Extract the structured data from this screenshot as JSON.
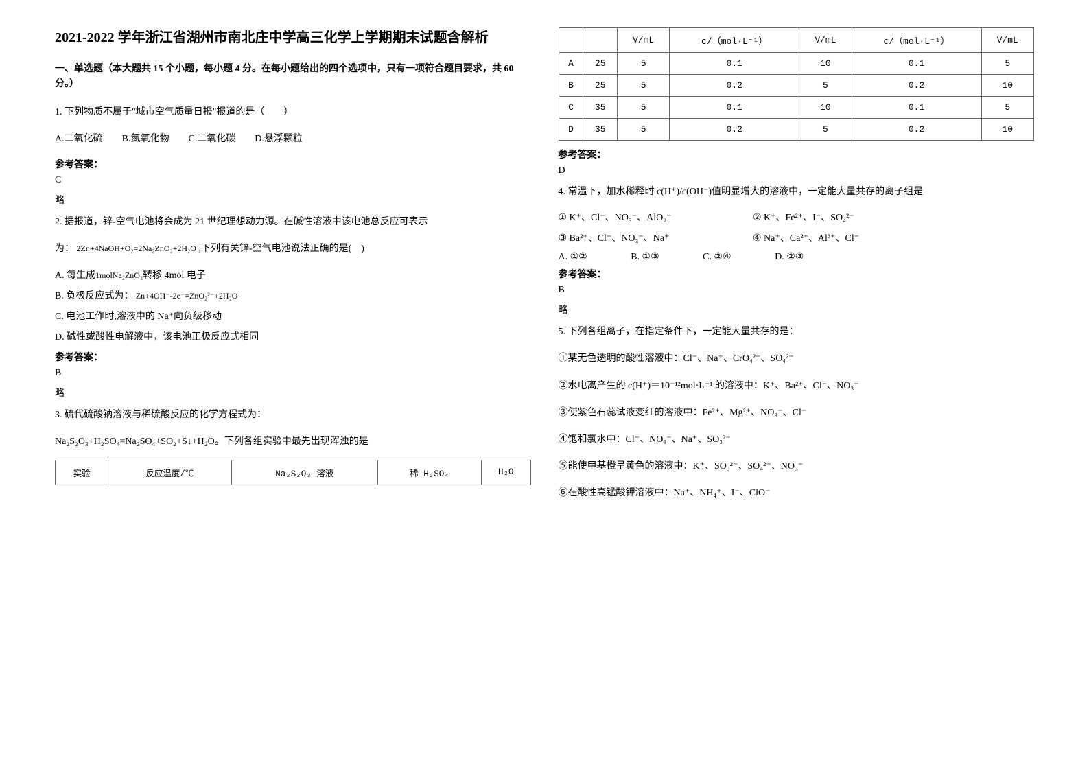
{
  "doc": {
    "title": "2021-2022 学年浙江省湖州市南北庄中学高三化学上学期期末试题含解析",
    "section1_intro": "一、单选题（本大题共 15 个小题，每小题 4 分。在每小题给出的四个选项中，只有一项符合题目要求，共 60 分。）",
    "q1": {
      "stem": "1. 下列物质不属于\"城市空气质量日报\"报道的是（　　）",
      "opts": "A.二氧化硫　　B.氮氧化物　　C.二氧化碳　　D.悬浮颗粒",
      "ans_label": "参考答案：",
      "ans": "C",
      "note": "略"
    },
    "q2": {
      "stem1": "2. 据报道，锌-空气电池将会成为 21 世纪理想动力源。在碱性溶液中该电池总反应可表示",
      "stem2_pre": "为：",
      "stem2_eq": "2Zn+4NaOH+O₂=2Na₂ZnO₂+2H₂O",
      "stem2_post": ",下列有关锌-空气电池说法正确的是(　)",
      "optA_pre": "A. 每生成",
      "optA_eq": "1molNa₂ZnO₂",
      "optA_post": "转移 4mol 电子",
      "optB_pre": "B. 负极反应式为：",
      "optB_eq": "Zn+4OH⁻-2e⁻=ZnO₂²⁻+2H₂O",
      "optC": "C. 电池工作时,溶液中的 Na⁺向负级移动",
      "optD": "D. 碱性或酸性电解液中，该电池正极反应式相同",
      "ans_label": "参考答案：",
      "ans": "B",
      "note": "略"
    },
    "q3": {
      "stem1": "3. 硫代硫酸钠溶液与稀硫酸反应的化学方程式为：",
      "stem2": "Na₂S₂O₃+H₂SO₄=Na₂SO₄+SO₂+S↓+H₂O。下列各组实验中最先出现浑浊的是",
      "table1": {
        "r": [
          "实验",
          "反应温度/℃",
          "Na₂S₂O₃ 溶液",
          "稀 H₂SO₄",
          "H₂O"
        ]
      },
      "table2": {
        "hdr": [
          "",
          "",
          "V/mL",
          "c/（mol·L⁻¹）",
          "V/mL",
          "c/（mol·L⁻¹）",
          "V/mL"
        ],
        "rows": [
          [
            "A",
            "25",
            "5",
            "0.1",
            "10",
            "0.1",
            "5"
          ],
          [
            "B",
            "25",
            "5",
            "0.2",
            "5",
            "0.2",
            "10"
          ],
          [
            "C",
            "35",
            "5",
            "0.1",
            "10",
            "0.1",
            "5"
          ],
          [
            "D",
            "35",
            "5",
            "0.2",
            "5",
            "0.2",
            "10"
          ]
        ]
      },
      "ans_label": "参考答案：",
      "ans": "D"
    },
    "q4": {
      "stem": "4. 常温下，加水稀释时 c(H⁺)/c(OH⁻)值明显增大的溶液中，一定能大量共存的离子组是",
      "line1_l": "① K⁺、Cl⁻、NO₃⁻、AlO₂⁻",
      "line1_r": "② K⁺、Fe²⁺、I⁻、SO₄²⁻",
      "line2_l": "③ Ba²⁺、Cl⁻、NO₃⁻、Na⁺",
      "line2_r": "④ Na⁺、Ca²⁺、Al³⁺、Cl⁻",
      "optsA": "A.  ①②",
      "optsB": "B.  ①③",
      "optsC": "C.  ②④",
      "optsD": "D.  ②③",
      "ans_label": "参考答案：",
      "ans": "B",
      "note": "略"
    },
    "q5": {
      "stem": "5. 下列各组离子，在指定条件下，一定能大量共存的是：",
      "l1": "①某无色透明的酸性溶液中：Cl⁻、Na⁺、CrO₄²⁻、SO₄²⁻",
      "l2": "②水电离产生的 c(H⁺)＝10⁻¹²mol·L⁻¹ 的溶液中：K⁺、Ba²⁺、Cl⁻、NO₃⁻",
      "l3": "③使紫色石蕊试液变红的溶液中：Fe²⁺、Mg²⁺、NO₃⁻、Cl⁻",
      "l4": "④饱和氯水中：Cl⁻、NO₃⁻、Na⁺、SO₃²⁻",
      "l5": "⑤能使甲基橙呈黄色的溶液中：K⁺、SO₃²⁻、SO₄²⁻、NO₃⁻",
      "l6": "⑥在酸性高锰酸钾溶液中：Na⁺、NH₄⁺、I⁻、ClO⁻"
    }
  },
  "style": {
    "page_bg": "#ffffff",
    "text_color": "#000000",
    "border_color": "#666666",
    "title_fontsize": 20,
    "body_fontsize": 14,
    "font_family": "SimSun"
  }
}
